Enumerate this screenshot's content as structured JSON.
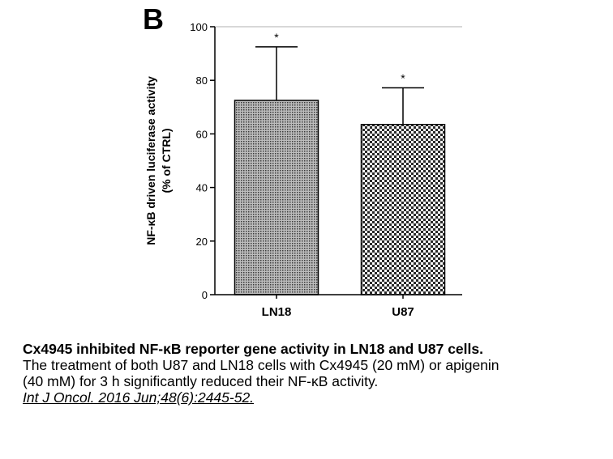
{
  "panel_label": "B",
  "chart_data": {
    "type": "bar",
    "categories": [
      "LN18",
      "U87"
    ],
    "values": [
      72.5,
      63.5
    ],
    "error_upper": [
      92.5,
      77.2
    ],
    "significance": [
      "*",
      "*"
    ],
    "ylabel_line1": "NF-κB driven luciferase activity",
    "ylabel_line2": "(% of CTRL)",
    "ylim": [
      0,
      100
    ],
    "yticks": [
      0,
      20,
      40,
      60,
      80,
      100
    ],
    "reference_line": 100,
    "bar_patterns": [
      "fine-dots",
      "checkerboard"
    ],
    "colors": {
      "bar_fill": "#8a8a8a",
      "bar_stroke": "#000000",
      "reference_line": "#b0b0b0"
    }
  },
  "caption": {
    "title": "Cx4945 inhibited NF-κB reporter gene activity in LN18 and U87 cells.",
    "line1": "The treatment of both U87 and LN18 cells with Cx4945 (20 mM) or apigenin",
    "line2": "(40 mM) for 3 h significantly reduced their NF-κB activity.",
    "citation": "Int J Oncol. 2016 Jun;48(6):2445-52."
  }
}
